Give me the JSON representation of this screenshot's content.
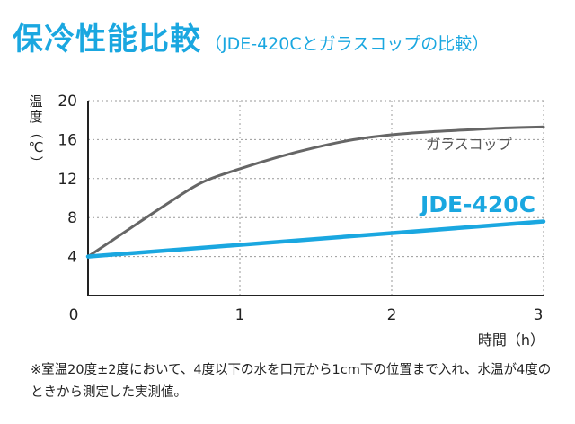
{
  "header": {
    "title": "保冷性能比較",
    "subtitle": "（JDE-420Cとガラスコップの比較）"
  },
  "chart_data": {
    "type": "line",
    "title": "",
    "xlabel": "時間（h）",
    "ylabel": "温度（℃）",
    "xlim": [
      0,
      3
    ],
    "ylim": [
      0,
      20
    ],
    "x_ticks": [
      "0",
      "1",
      "2",
      "3"
    ],
    "y_ticks": [
      "4",
      "8",
      "12",
      "16",
      "20"
    ],
    "grid": "horizontal dotted",
    "series": [
      {
        "name": "ガラスコップ",
        "color": "#666666",
        "x": [
          0,
          0.25,
          0.5,
          0.75,
          1.0,
          1.25,
          1.5,
          1.75,
          2.0,
          2.25,
          2.5,
          2.75,
          3.0
        ],
        "y": [
          4.0,
          6.6,
          9.2,
          11.6,
          13.0,
          14.2,
          15.2,
          16.0,
          16.5,
          16.8,
          17.0,
          17.2,
          17.3
        ]
      },
      {
        "name": "JDE-420C",
        "color": "#1aa7e0",
        "x": [
          0,
          3.0
        ],
        "y": [
          4.0,
          7.6
        ]
      }
    ]
  },
  "footnote": "※室温20度±2度において、4度以下の水を口元から1cm下の位置まで入れ、水温が4度のときから測定した実測値。"
}
